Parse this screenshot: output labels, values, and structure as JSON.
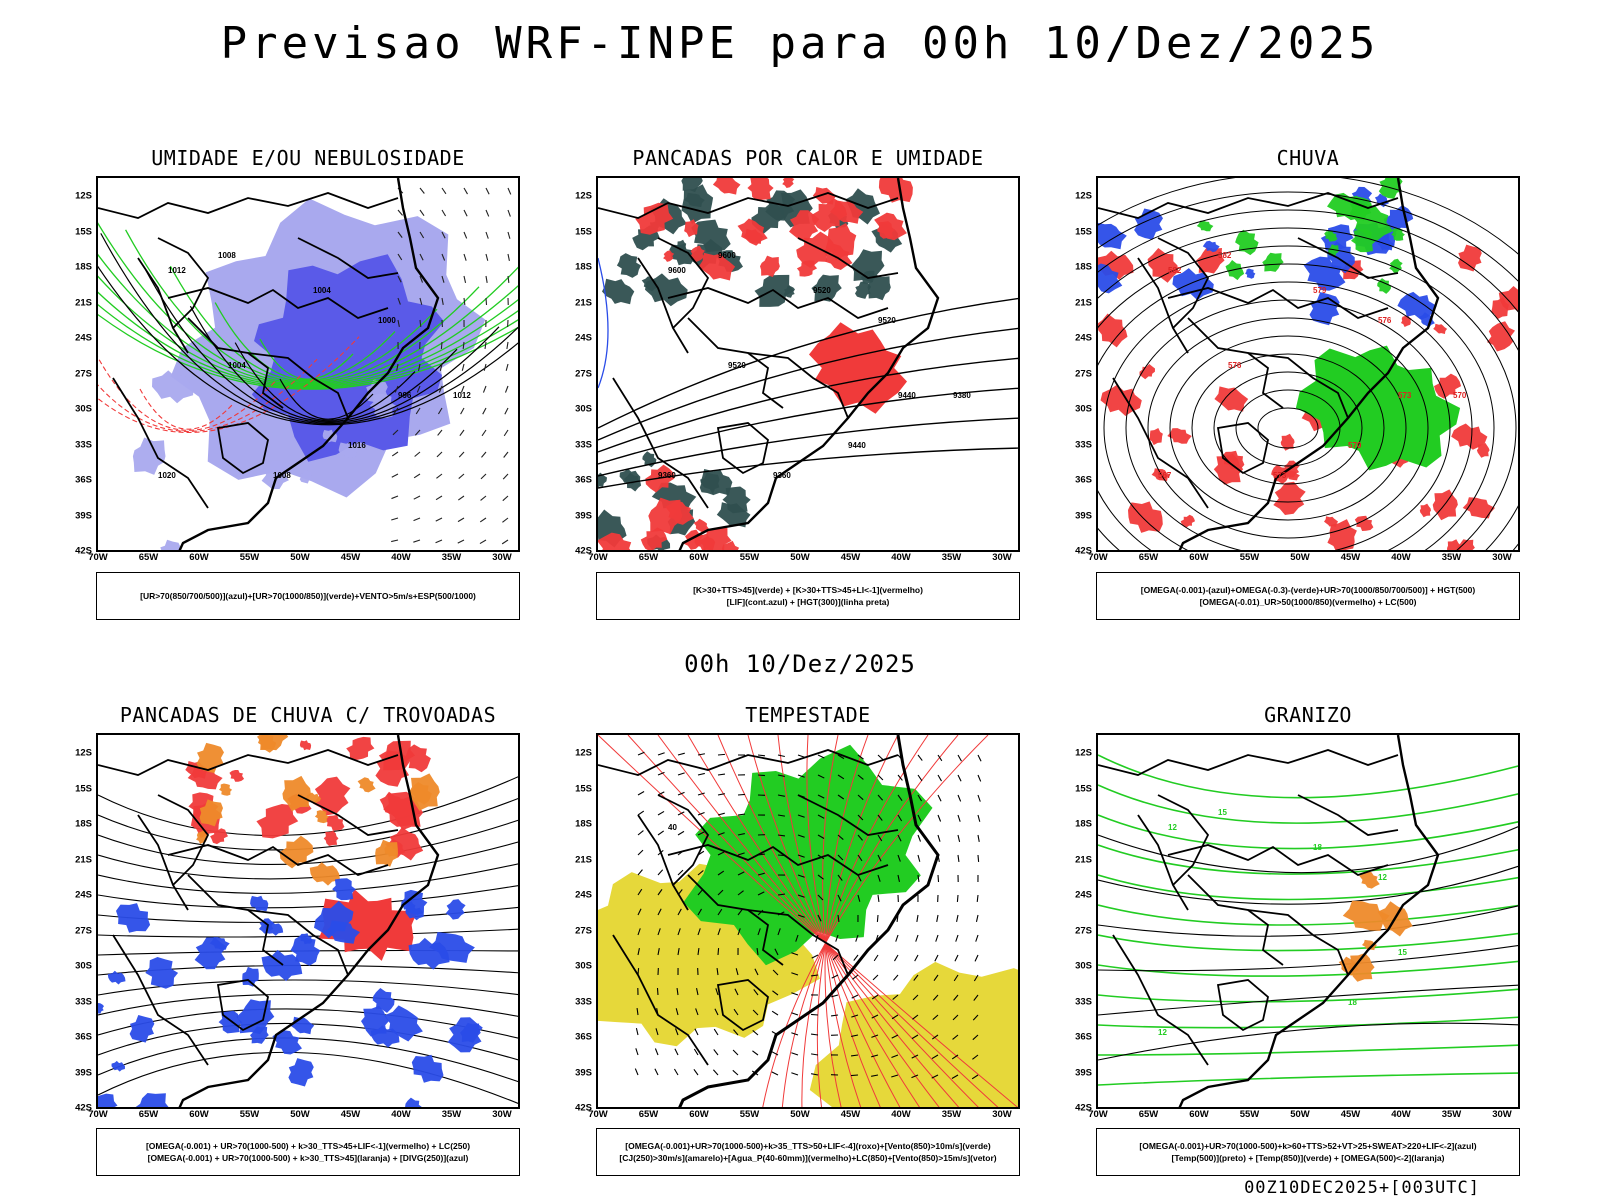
{
  "page": {
    "main_title": "Previsao WRF-INPE  para 00h 10/Dez/2025",
    "mid_title": "00h 10/Dez/2025",
    "footer_stamp": "00Z10DEC2025+[003UTC]"
  },
  "axes": {
    "lat_labels": [
      "12S",
      "15S",
      "18S",
      "21S",
      "24S",
      "27S",
      "30S",
      "33S",
      "36S",
      "39S",
      "42S"
    ],
    "lon_labels": [
      "70W",
      "65W",
      "60W",
      "55W",
      "50W",
      "45W",
      "40W",
      "35W",
      "30W"
    ]
  },
  "panels": [
    {
      "title": "UMIDADE E/OU NEBULOSIDADE",
      "legend": [
        "[UR>70(850/700/500)](azul)+[UR>70(1000/850)](verde)+VENTO>5m/s+ESP(500/1000)"
      ],
      "contour_labels": [
        "1012",
        "1008",
        "1004",
        "1000",
        "996",
        "1016",
        "1020",
        "1012",
        "1008",
        "1004"
      ]
    },
    {
      "title": "PANCADAS POR CALOR E UMIDADE",
      "legend": [
        "[K>30+TTS>45](verde)  +  [K>30+TTS>45+LI<-1](vermelho)",
        "[LIF](cont.azul)  +  [HGT(300)](linha preta)"
      ],
      "contour_labels": [
        "9600",
        "9600",
        "9520",
        "9520",
        "9440",
        "9440",
        "9360",
        "9380",
        "9360",
        "9520"
      ]
    },
    {
      "title": "CHUVA",
      "legend": [
        "[OMEGA(-0.001)-(azul)+OMEGA(-0.3)-(verde)+UR>70(1000/850/700/500)]  +  HGT(500)",
        "[OMEGA(-0.01)_UR>50(1000/850)(vermelho)  +  LC(500)"
      ],
      "contour_labels": [
        "582",
        "582",
        "579",
        "576",
        "573",
        "570",
        "567",
        "570",
        "573",
        "576"
      ]
    },
    {
      "title": "PANCADAS DE CHUVA C/ TROVOADAS",
      "legend": [
        "[OMEGA(-0.001)  +  UR>70(1000-500)  +  k>30_TTS>45+LIF<-1](vermelho)  +  LC(250)",
        "[OMEGA(-0.001)  +  UR>70(1000-500)  +  k>30_TTS>45](laranja)  +  [DIVG(250)](azul)"
      ],
      "contour_labels": []
    },
    {
      "title": "TEMPESTADE",
      "legend": [
        "[OMEGA(-0.001)+UR>70(1000-500)+k>35_TTS>50+LIF<-4](roxo)+[Vento(850)>10m/s](verde)",
        "[CJ(250)>30m/s](amarelo)+[Agua_P(40-60mm)](vermelho)+LC(850)+[Vento(850)>15m/s](vetor)"
      ],
      "contour_labels": [
        "40"
      ]
    },
    {
      "title": "GRANIZO",
      "legend": [
        "[OMEGA(-0.001)+UR>70(1000-500)+k>60+TTS>52+VT>25+SWEAT>220+LIF<-2](azul)",
        "[Temp(500)](preto)  +  [Temp(850)](verde)  +  [OMEGA(500)<-2](laranja)"
      ],
      "contour_labels": [
        "12",
        "15",
        "18",
        "12",
        "15",
        "18",
        "12"
      ]
    }
  ],
  "colors": {
    "humid_blue": "#5a5ae8",
    "humid_blue_light": "#a9a9ee",
    "green": "#22cc22",
    "red": "#f03a3a",
    "dark_teal": "#2f4f4f",
    "orange": "#ee8a2a",
    "blue": "#2a4ce8",
    "yellow": "#e6d83a",
    "black": "#000000"
  }
}
